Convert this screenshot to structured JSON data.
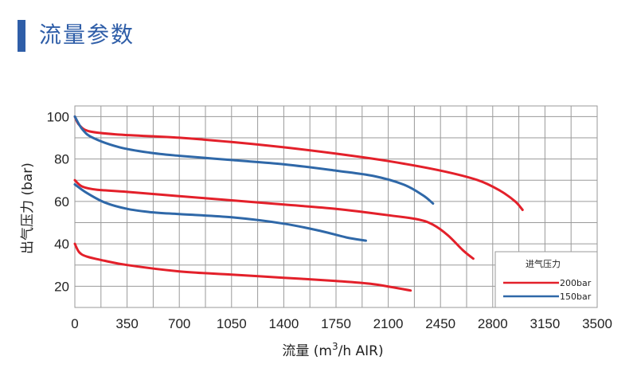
{
  "page": {
    "title": "流量参数"
  },
  "colors": {
    "accent": "#2f5ea8",
    "red": "#e3202a",
    "blue": "#2f68a8",
    "grid": "#9a9a9a"
  },
  "chart_data": {
    "type": "line",
    "title": "流量参数",
    "xlabel_main": "流量 (m",
    "xlabel_sup": "3",
    "xlabel_tail": "/h AIR)",
    "ylabel": "出气压力 (bar)",
    "xlim": [
      0,
      3500
    ],
    "ylim": [
      10,
      105
    ],
    "x_ticks": [
      0,
      350,
      700,
      1050,
      1400,
      1750,
      2100,
      2450,
      2800,
      3150,
      3500
    ],
    "y_ticks": [
      20,
      40,
      60,
      80,
      100
    ],
    "legend": {
      "title": "进气压力",
      "position": "bottom-right"
    },
    "series": [
      {
        "name": "200bar",
        "color": "#e3202a",
        "legend": true,
        "points": [
          [
            0,
            100
          ],
          [
            30,
            96
          ],
          [
            100,
            93
          ],
          [
            300,
            91.5
          ],
          [
            700,
            90
          ],
          [
            1050,
            88
          ],
          [
            1400,
            85.5
          ],
          [
            1750,
            82.5
          ],
          [
            2100,
            79
          ],
          [
            2450,
            74.5
          ],
          [
            2700,
            70
          ],
          [
            2850,
            65
          ],
          [
            2950,
            60
          ],
          [
            3000,
            56
          ]
        ]
      },
      {
        "name": "200bar",
        "color": "#e3202a",
        "legend": false,
        "points": [
          [
            0,
            70
          ],
          [
            50,
            67
          ],
          [
            150,
            65.5
          ],
          [
            350,
            64.5
          ],
          [
            700,
            62.5
          ],
          [
            1050,
            60.5
          ],
          [
            1400,
            58.5
          ],
          [
            1750,
            56.5
          ],
          [
            2100,
            53.5
          ],
          [
            2300,
            51.5
          ],
          [
            2400,
            49
          ],
          [
            2500,
            44
          ],
          [
            2600,
            37
          ],
          [
            2670,
            33
          ]
        ]
      },
      {
        "name": "200bar",
        "color": "#e3202a",
        "legend": false,
        "points": [
          [
            0,
            40
          ],
          [
            30,
            36
          ],
          [
            80,
            34
          ],
          [
            200,
            32
          ],
          [
            350,
            30
          ],
          [
            700,
            27
          ],
          [
            1050,
            25.5
          ],
          [
            1400,
            24
          ],
          [
            1750,
            22.5
          ],
          [
            2000,
            21
          ],
          [
            2250,
            18
          ]
        ]
      },
      {
        "name": "150bar",
        "color": "#2f68a8",
        "legend": true,
        "points": [
          [
            0,
            100
          ],
          [
            50,
            94
          ],
          [
            120,
            90
          ],
          [
            300,
            85.5
          ],
          [
            500,
            83
          ],
          [
            700,
            81.5
          ],
          [
            1050,
            79.5
          ],
          [
            1400,
            77.5
          ],
          [
            1750,
            74.5
          ],
          [
            2000,
            72
          ],
          [
            2200,
            68
          ],
          [
            2330,
            63
          ],
          [
            2400,
            59
          ]
        ]
      },
      {
        "name": "150bar",
        "color": "#2f68a8",
        "legend": false,
        "points": [
          [
            0,
            68
          ],
          [
            80,
            64
          ],
          [
            200,
            59.5
          ],
          [
            350,
            56.5
          ],
          [
            500,
            55
          ],
          [
            700,
            54
          ],
          [
            1050,
            52.5
          ],
          [
            1400,
            49.5
          ],
          [
            1650,
            46
          ],
          [
            1820,
            43
          ],
          [
            1950,
            41.5
          ]
        ]
      }
    ]
  }
}
